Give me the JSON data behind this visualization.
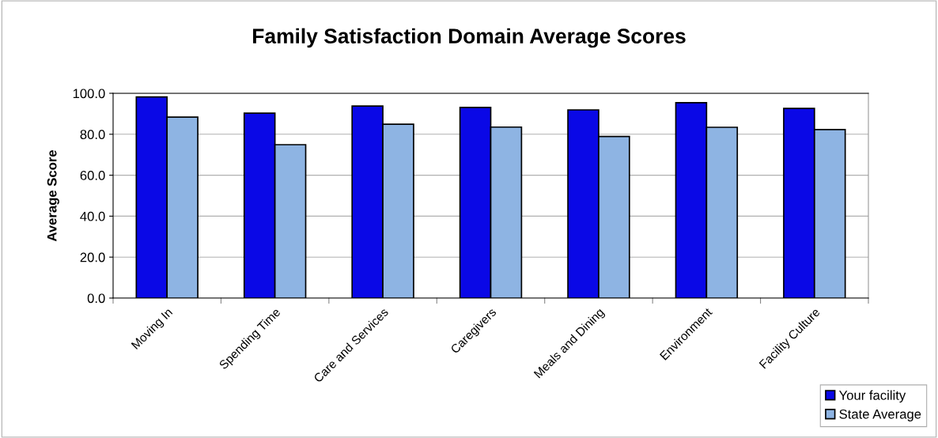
{
  "chart_data": {
    "type": "bar",
    "title": "Family Satisfaction Domain Average Scores",
    "ylabel": "Average Score",
    "categories": [
      "Moving In",
      "Spending Time",
      "Care and Services",
      "Caregivers",
      "Meals and Dining",
      "Environment",
      "Facility Culture"
    ],
    "series": [
      {
        "name": "Your facility",
        "color": "#0a08e6",
        "values": [
          98.2,
          90.3,
          93.8,
          93.1,
          91.9,
          95.4,
          92.6
        ]
      },
      {
        "name": "State Average",
        "color": "#8eb4e3",
        "values": [
          88.4,
          74.9,
          84.9,
          83.5,
          78.9,
          83.4,
          82.3
        ]
      }
    ],
    "ylim": [
      0,
      100
    ],
    "yticks": [
      {
        "value": 0,
        "label": "0.0"
      },
      {
        "value": 20,
        "label": "20.0"
      },
      {
        "value": 40,
        "label": "40.0"
      },
      {
        "value": 60,
        "label": "60.0"
      },
      {
        "value": 80,
        "label": "80.0"
      },
      {
        "value": 100,
        "label": "100.0"
      }
    ],
    "grid": "y",
    "legend": "bottom right"
  }
}
